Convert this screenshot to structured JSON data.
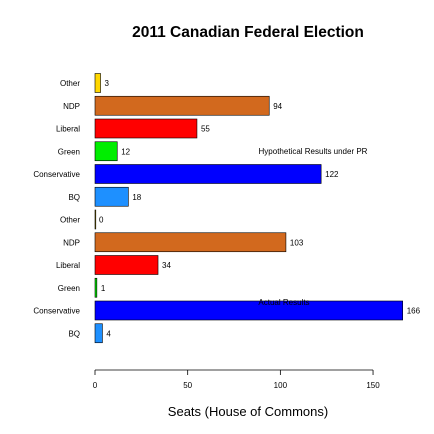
{
  "chart_data": {
    "type": "bar",
    "orientation": "horizontal",
    "title": "2011 Canadian Federal Election",
    "xlabel": "Seats (House of Commons)",
    "ylabel": "",
    "xlim": [
      0,
      166
    ],
    "xticks": [
      0,
      50,
      100,
      150
    ],
    "grid": false,
    "groups": [
      {
        "label": "Hypothetical Results under PR",
        "bars": [
          {
            "category": "Other",
            "value": 3,
            "color": "#FFD700"
          },
          {
            "category": "NDP",
            "value": 94,
            "color": "#D2691E"
          },
          {
            "category": "Liberal",
            "value": 55,
            "color": "#FF0000"
          },
          {
            "category": "Green",
            "value": 12,
            "color": "#00EE00"
          },
          {
            "category": "Conservative",
            "value": 122,
            "color": "#0000FF"
          },
          {
            "category": "BQ",
            "value": 18,
            "color": "#1E90FF"
          }
        ]
      },
      {
        "label": "Actual Results",
        "bars": [
          {
            "category": "Other",
            "value": 0,
            "color": "#FFD700"
          },
          {
            "category": "NDP",
            "value": 103,
            "color": "#D2691E"
          },
          {
            "category": "Liberal",
            "value": 34,
            "color": "#FF0000"
          },
          {
            "category": "Green",
            "value": 1,
            "color": "#00EE00"
          },
          {
            "category": "Conservative",
            "value": 166,
            "color": "#0000FF"
          },
          {
            "category": "BQ",
            "value": 4,
            "color": "#1E90FF"
          }
        ]
      }
    ]
  }
}
